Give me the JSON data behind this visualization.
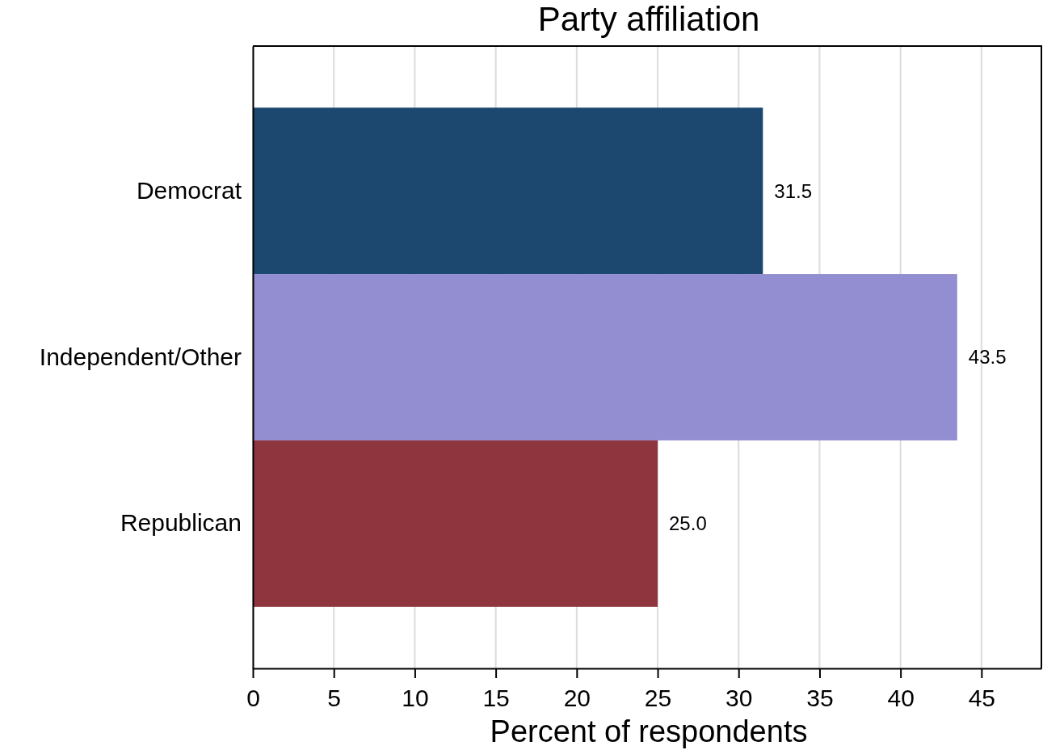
{
  "chart_data": {
    "type": "bar",
    "orientation": "horizontal",
    "title": "Party affiliation",
    "xlabel": "Percent of respondents",
    "categories": [
      "Democrat",
      "Independent/Other",
      "Republican"
    ],
    "values": [
      31.5,
      43.5,
      25.0
    ],
    "colors": [
      "#1c4870",
      "#938ed1",
      "#8f353d"
    ],
    "value_labels": [
      "31.5",
      "43.5",
      "25.0"
    ],
    "xlim": [
      0,
      48.7
    ],
    "xticks": [
      0,
      5,
      10,
      15,
      20,
      25,
      30,
      35,
      40,
      45
    ],
    "grid": "x"
  }
}
